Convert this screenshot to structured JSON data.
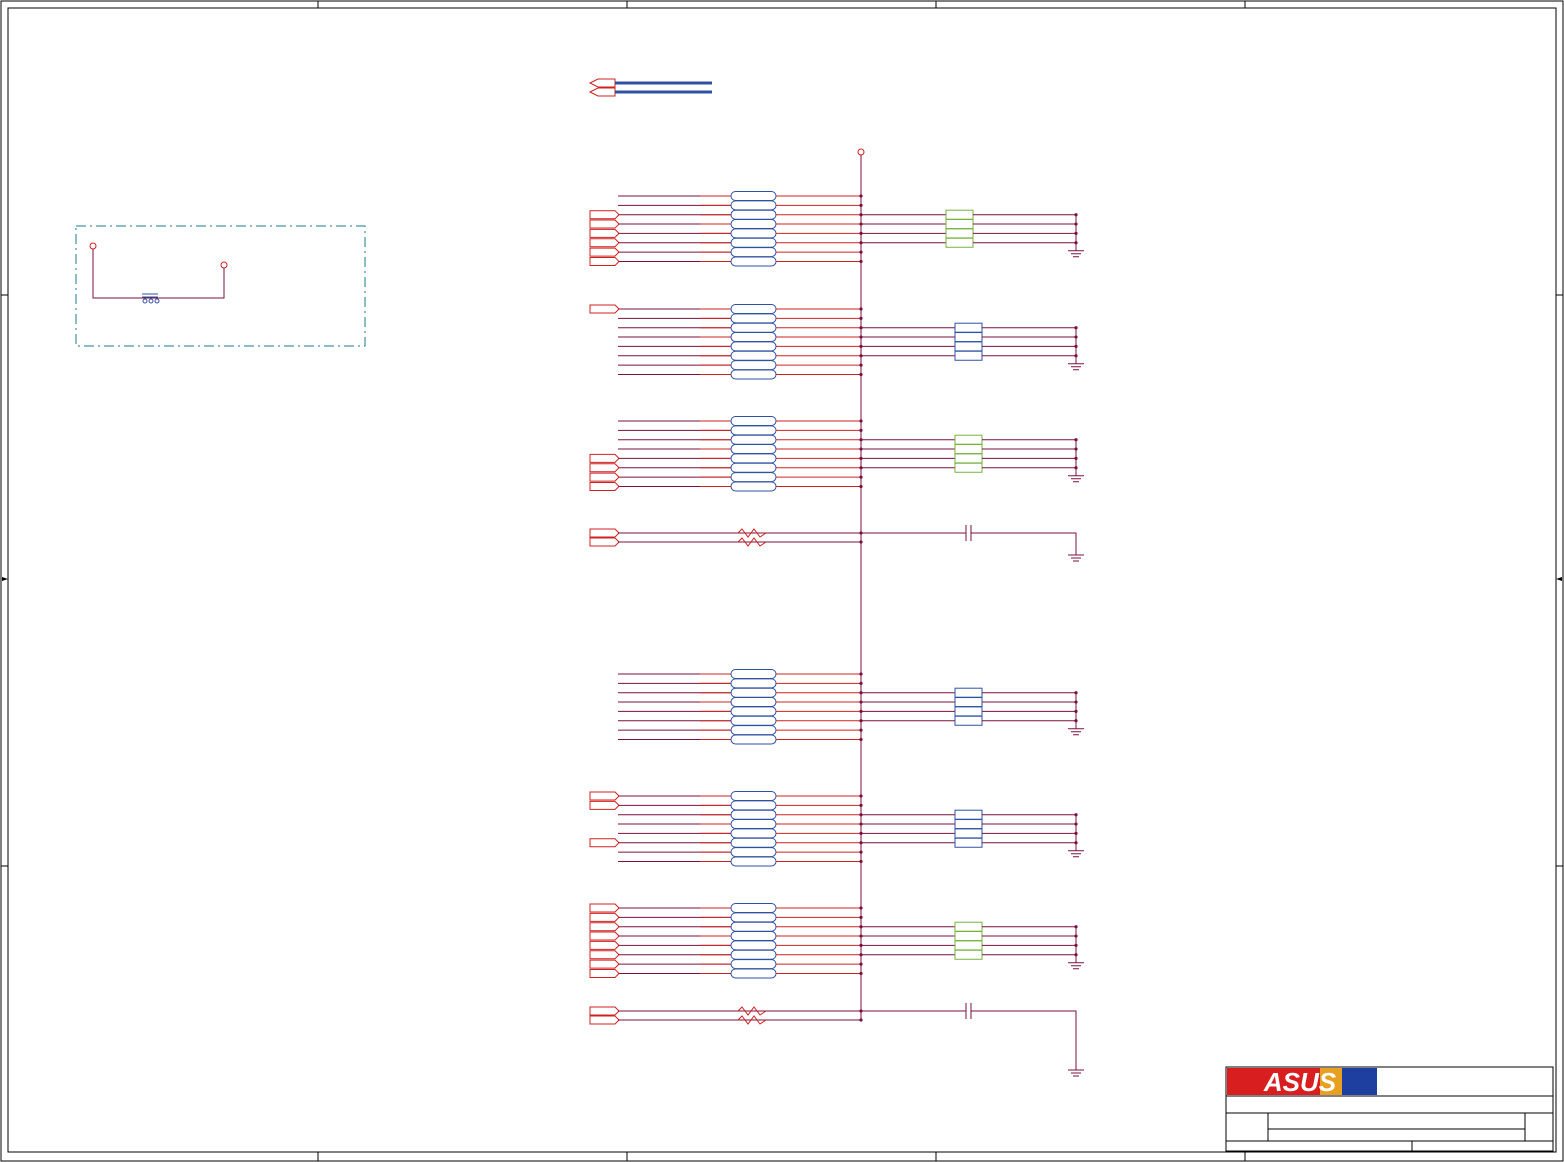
{
  "logo": {
    "text": "ASUS"
  }
}
